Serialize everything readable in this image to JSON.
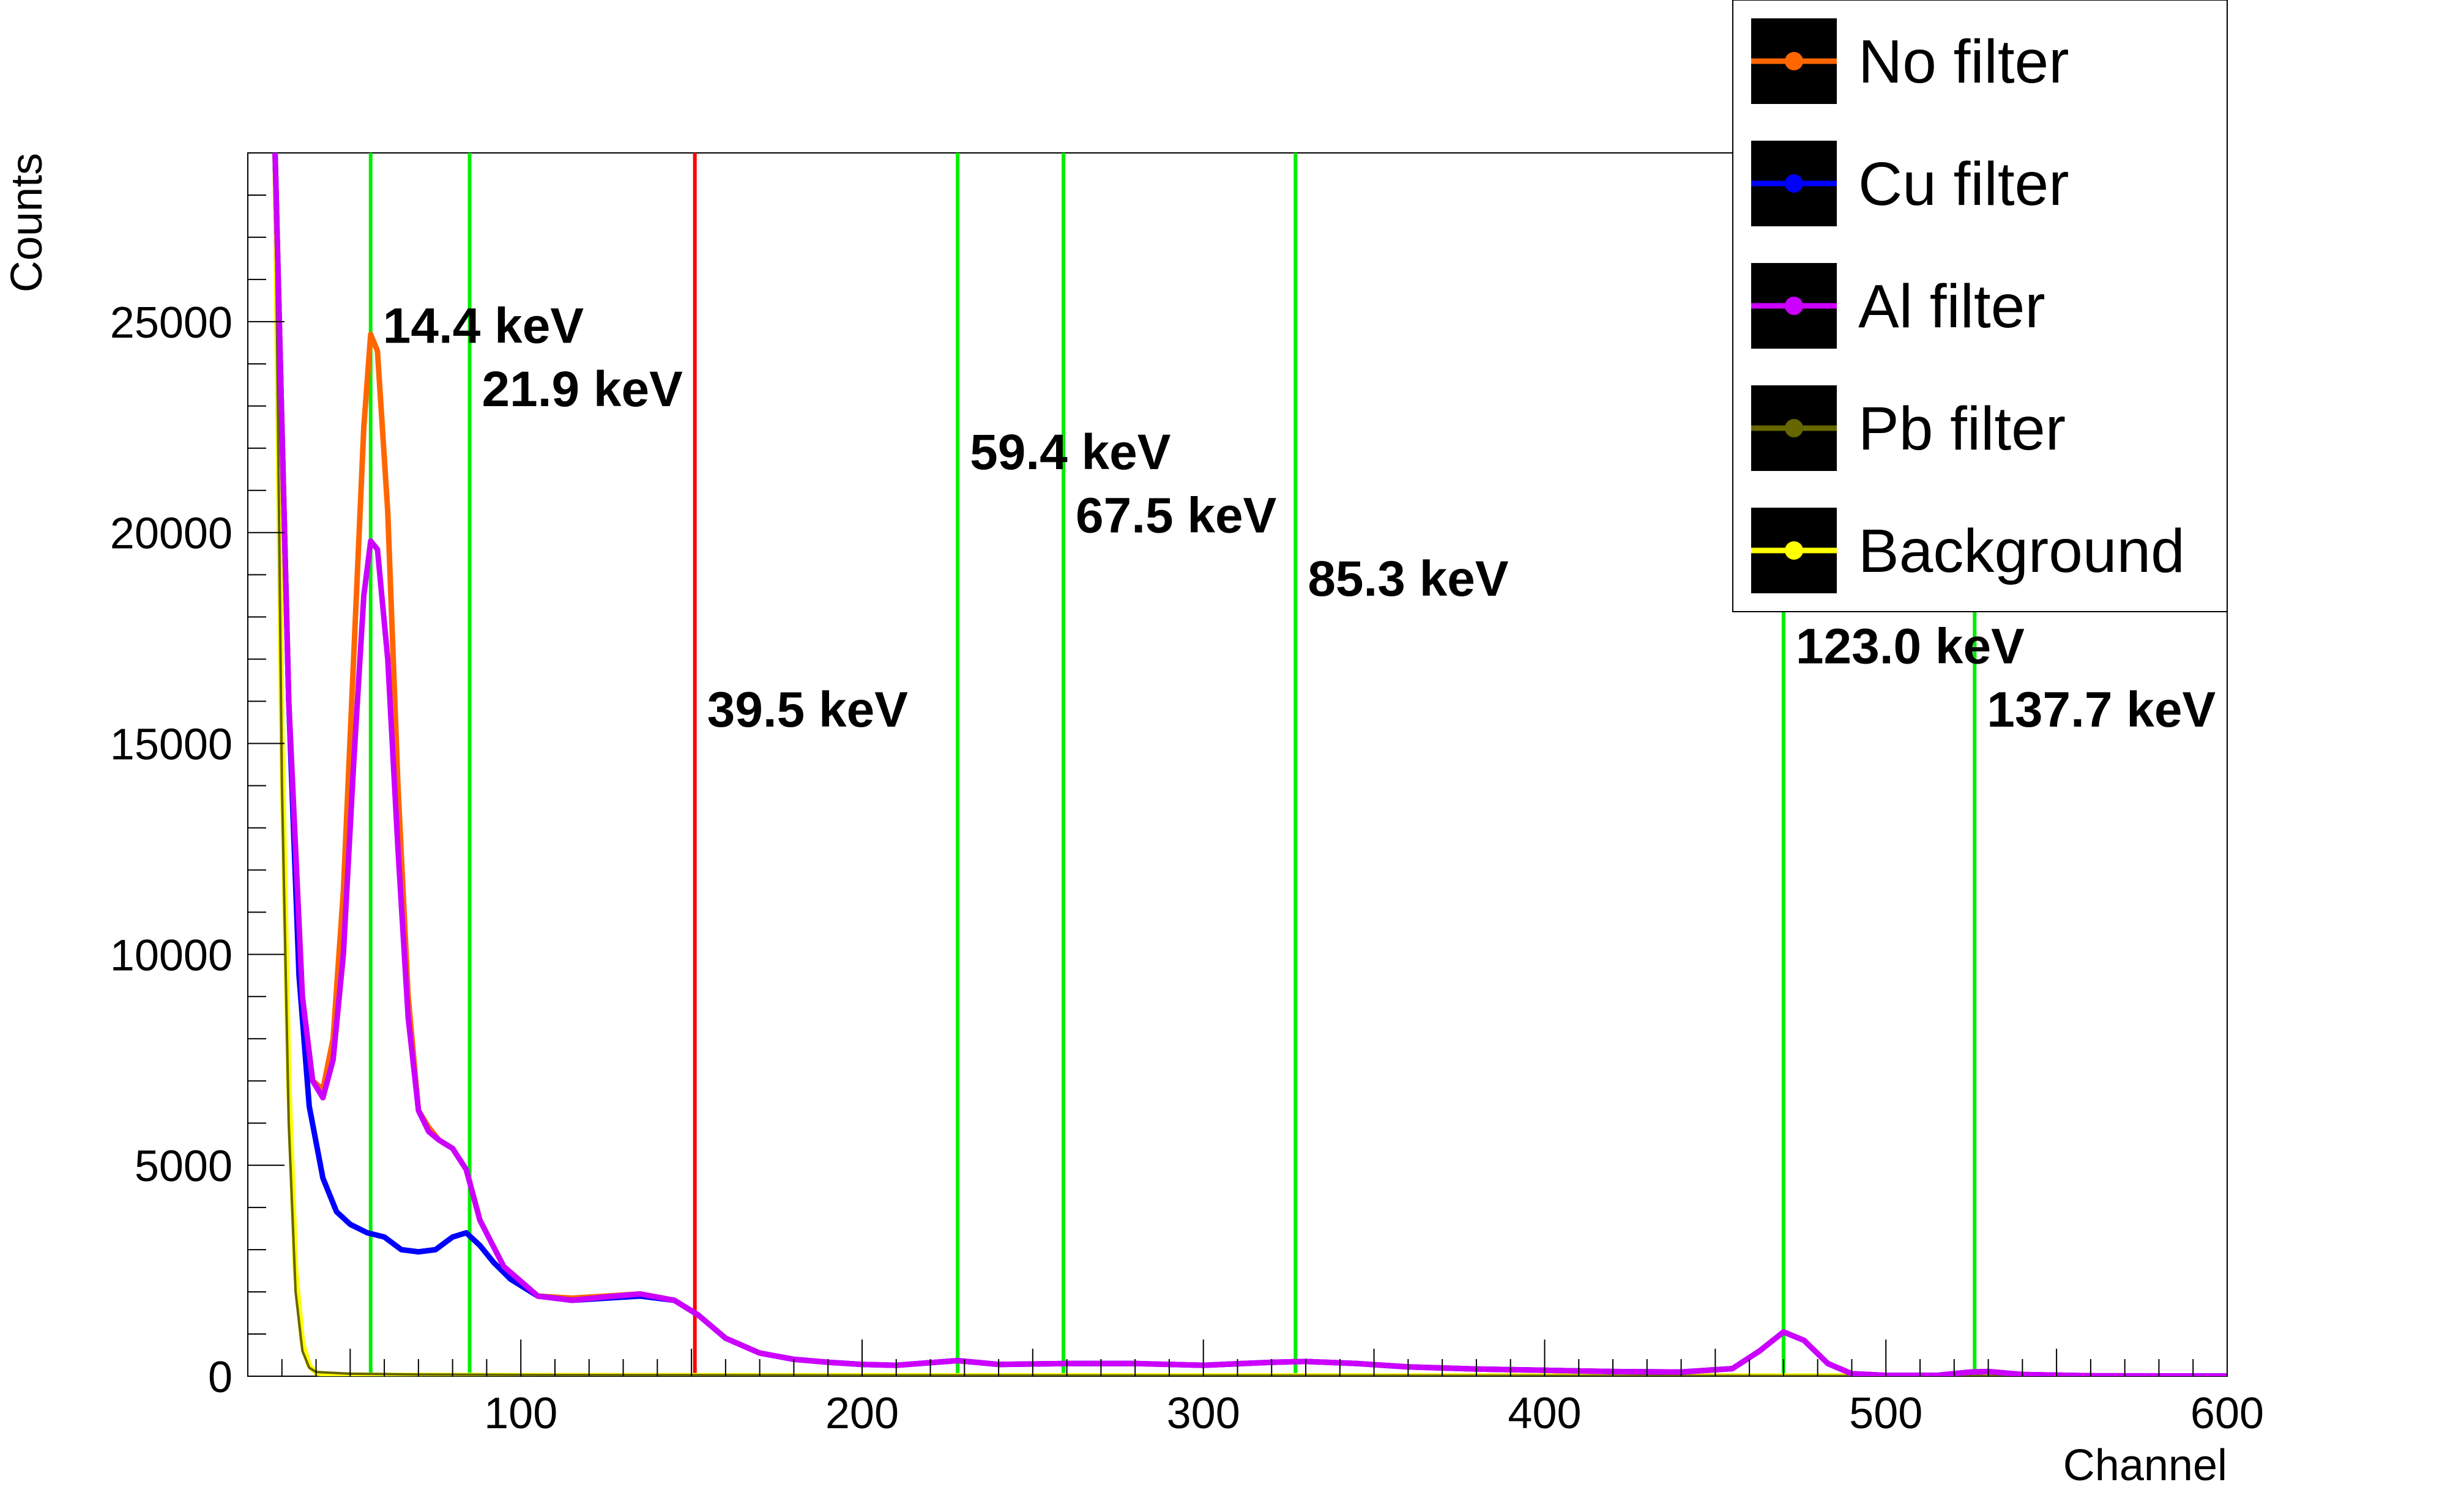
{
  "chart_data": {
    "type": "line",
    "title": "",
    "xlabel": "Channel",
    "ylabel": "Counts",
    "xlim": [
      20,
      600
    ],
    "ylim": [
      0,
      29000
    ],
    "x_ticks": [
      100,
      200,
      300,
      400,
      500,
      600
    ],
    "y_ticks": [
      0,
      5000,
      10000,
      15000,
      20000,
      25000
    ],
    "grid": false,
    "legend_position": "top-right",
    "colors": {
      "no_filter": "#ff6600",
      "cu_filter": "#0000ff",
      "al_filter": "#cc00ff",
      "pb_filter": "#666600",
      "background": "#ffff00",
      "marker_green": "#00ee00",
      "marker_red": "#ff0000"
    },
    "series": [
      {
        "name": "No filter",
        "color": "#ff6600",
        "points": [
          [
            28,
            29000
          ],
          [
            32,
            16000
          ],
          [
            36,
            9000
          ],
          [
            39,
            7000
          ],
          [
            42,
            6800
          ],
          [
            45,
            8000
          ],
          [
            48,
            11500
          ],
          [
            51,
            17000
          ],
          [
            54,
            22500
          ],
          [
            56,
            24700
          ],
          [
            58,
            24300
          ],
          [
            61,
            20500
          ],
          [
            64,
            14000
          ],
          [
            67,
            9000
          ],
          [
            70,
            6300
          ],
          [
            73,
            5900
          ],
          [
            76,
            5600
          ],
          [
            80,
            5400
          ],
          [
            84,
            4900
          ],
          [
            88,
            3700
          ],
          [
            95,
            2600
          ],
          [
            105,
            1900
          ],
          [
            115,
            1850
          ],
          [
            125,
            1900
          ],
          [
            135,
            1950
          ],
          [
            145,
            1800
          ],
          [
            152,
            1450
          ],
          [
            160,
            900
          ],
          [
            170,
            550
          ],
          [
            180,
            400
          ],
          [
            190,
            330
          ],
          [
            200,
            280
          ],
          [
            210,
            260
          ],
          [
            220,
            320
          ],
          [
            228,
            370
          ],
          [
            240,
            280
          ],
          [
            260,
            300
          ],
          [
            280,
            300
          ],
          [
            300,
            260
          ],
          [
            320,
            330
          ],
          [
            330,
            350
          ],
          [
            345,
            300
          ],
          [
            360,
            220
          ],
          [
            380,
            170
          ],
          [
            400,
            140
          ],
          [
            420,
            110
          ],
          [
            440,
            100
          ],
          [
            455,
            180
          ],
          [
            463,
            600
          ],
          [
            470,
            1050
          ],
          [
            476,
            850
          ],
          [
            483,
            300
          ],
          [
            490,
            60
          ],
          [
            500,
            20
          ],
          [
            515,
            20
          ],
          [
            525,
            100
          ],
          [
            530,
            110
          ],
          [
            540,
            40
          ],
          [
            560,
            10
          ],
          [
            600,
            5
          ]
        ]
      },
      {
        "name": "Cu filter",
        "color": "#0000ff",
        "points": [
          [
            28,
            29000
          ],
          [
            32,
            16000
          ],
          [
            35,
            9500
          ],
          [
            38,
            6400
          ],
          [
            42,
            4700
          ],
          [
            46,
            3900
          ],
          [
            50,
            3600
          ],
          [
            55,
            3400
          ],
          [
            60,
            3300
          ],
          [
            65,
            3000
          ],
          [
            70,
            2950
          ],
          [
            75,
            3000
          ],
          [
            80,
            3300
          ],
          [
            84,
            3400
          ],
          [
            88,
            3100
          ],
          [
            92,
            2700
          ],
          [
            97,
            2300
          ],
          [
            105,
            1900
          ],
          [
            115,
            1800
          ],
          [
            125,
            1850
          ],
          [
            135,
            1900
          ],
          [
            145,
            1800
          ],
          [
            152,
            1450
          ],
          [
            160,
            900
          ],
          [
            170,
            550
          ],
          [
            180,
            400
          ],
          [
            190,
            330
          ],
          [
            200,
            280
          ],
          [
            210,
            260
          ],
          [
            220,
            320
          ],
          [
            228,
            370
          ],
          [
            240,
            280
          ],
          [
            260,
            300
          ],
          [
            280,
            300
          ],
          [
            300,
            260
          ],
          [
            320,
            330
          ],
          [
            330,
            350
          ],
          [
            345,
            300
          ],
          [
            360,
            220
          ],
          [
            380,
            170
          ],
          [
            400,
            140
          ],
          [
            420,
            110
          ],
          [
            440,
            100
          ],
          [
            455,
            180
          ],
          [
            463,
            600
          ],
          [
            470,
            1050
          ],
          [
            476,
            850
          ],
          [
            483,
            300
          ],
          [
            490,
            60
          ],
          [
            500,
            20
          ],
          [
            515,
            20
          ],
          [
            525,
            100
          ],
          [
            530,
            110
          ],
          [
            540,
            40
          ],
          [
            560,
            10
          ],
          [
            600,
            5
          ]
        ]
      },
      {
        "name": "Al filter",
        "color": "#cc00ff",
        "points": [
          [
            28,
            29000
          ],
          [
            32,
            16000
          ],
          [
            36,
            9000
          ],
          [
            39,
            7000
          ],
          [
            42,
            6600
          ],
          [
            45,
            7500
          ],
          [
            48,
            10000
          ],
          [
            51,
            14500
          ],
          [
            54,
            18500
          ],
          [
            56,
            19800
          ],
          [
            58,
            19600
          ],
          [
            61,
            17000
          ],
          [
            64,
            12500
          ],
          [
            67,
            8500
          ],
          [
            70,
            6300
          ],
          [
            73,
            5800
          ],
          [
            76,
            5600
          ],
          [
            80,
            5400
          ],
          [
            84,
            4900
          ],
          [
            88,
            3700
          ],
          [
            95,
            2600
          ],
          [
            105,
            1900
          ],
          [
            115,
            1800
          ],
          [
            125,
            1880
          ],
          [
            135,
            1950
          ],
          [
            145,
            1800
          ],
          [
            152,
            1450
          ],
          [
            160,
            900
          ],
          [
            170,
            550
          ],
          [
            180,
            400
          ],
          [
            190,
            330
          ],
          [
            200,
            280
          ],
          [
            210,
            260
          ],
          [
            220,
            320
          ],
          [
            228,
            370
          ],
          [
            240,
            280
          ],
          [
            260,
            300
          ],
          [
            280,
            300
          ],
          [
            300,
            260
          ],
          [
            320,
            330
          ],
          [
            330,
            350
          ],
          [
            345,
            300
          ],
          [
            360,
            220
          ],
          [
            380,
            170
          ],
          [
            400,
            140
          ],
          [
            420,
            110
          ],
          [
            440,
            100
          ],
          [
            455,
            180
          ],
          [
            463,
            600
          ],
          [
            470,
            1050
          ],
          [
            476,
            850
          ],
          [
            483,
            300
          ],
          [
            490,
            60
          ],
          [
            500,
            20
          ],
          [
            515,
            20
          ],
          [
            525,
            100
          ],
          [
            530,
            110
          ],
          [
            540,
            40
          ],
          [
            560,
            10
          ],
          [
            600,
            5
          ]
        ]
      },
      {
        "name": "Pb filter",
        "color": "#666600",
        "points": [
          [
            28,
            29000
          ],
          [
            30,
            14000
          ],
          [
            32,
            6000
          ],
          [
            34,
            2000
          ],
          [
            36,
            600
          ],
          [
            38,
            200
          ],
          [
            40,
            100
          ],
          [
            50,
            60
          ],
          [
            70,
            40
          ],
          [
            100,
            30
          ],
          [
            200,
            20
          ],
          [
            300,
            15
          ],
          [
            400,
            10
          ],
          [
            600,
            5
          ]
        ]
      },
      {
        "name": "Background",
        "color": "#ffff00",
        "points": [
          [
            28,
            29000
          ],
          [
            30,
            15000
          ],
          [
            32,
            7000
          ],
          [
            34,
            2500
          ],
          [
            36,
            800
          ],
          [
            38,
            250
          ],
          [
            40,
            80
          ],
          [
            44,
            30
          ],
          [
            60,
            20
          ],
          [
            100,
            15
          ],
          [
            200,
            10
          ],
          [
            400,
            5
          ],
          [
            600,
            3
          ]
        ]
      }
    ],
    "markers": [
      {
        "channel": 56,
        "label": "14.4 keV",
        "color": "green",
        "label_y": 24500
      },
      {
        "channel": 85,
        "label": "21.9 keV",
        "color": "green",
        "label_y": 23000
      },
      {
        "channel": 151,
        "label": "39.5 keV",
        "color": "red",
        "label_y": 15400
      },
      {
        "channel": 228,
        "label": "59.4 keV",
        "color": "green",
        "label_y": 21500
      },
      {
        "channel": 259,
        "label": "67.5 keV",
        "color": "green",
        "label_y": 20000
      },
      {
        "channel": 327,
        "label": "85.3 keV",
        "color": "green",
        "label_y": 18500
      },
      {
        "channel": 470,
        "label": "123.0 keV",
        "color": "green",
        "label_y": 16900
      },
      {
        "channel": 526,
        "label": "137.7 keV",
        "color": "green",
        "label_y": 15400
      }
    ]
  }
}
